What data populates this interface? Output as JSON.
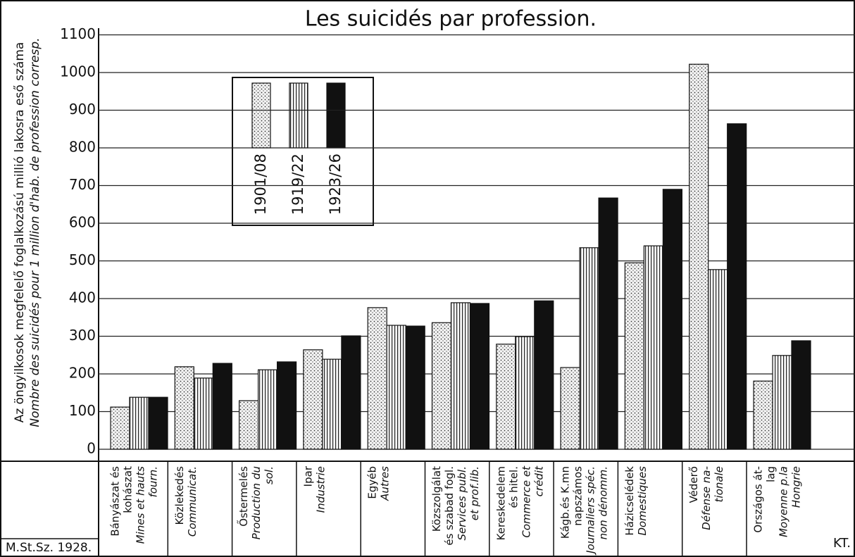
{
  "chart_data": {
    "type": "bar",
    "title": "Les suicidés par profession.",
    "y_label": "Az öngyilkosok megfelelő foglalkozású millió lakosra eső száma",
    "y_label_fr": "Nombre des suicidés pour 1 million d'hab. de profession corresp.",
    "source": "M.St.Sz. 1928.",
    "mark": "KT.",
    "categories": [
      {
        "hu": [
          "Bányászat és",
          "kohászat"
        ],
        "fr": [
          "Mines et hauts",
          "fourn."
        ]
      },
      {
        "hu": [
          "Közlekedés"
        ],
        "fr": [
          "Communicat."
        ]
      },
      {
        "hu": [
          "Őstermelés"
        ],
        "fr": [
          "Production du",
          "sol."
        ]
      },
      {
        "hu": [
          "Ipar"
        ],
        "fr": [
          "Industrie"
        ]
      },
      {
        "hu": [
          "Egyéb"
        ],
        "fr": [
          "Autres"
        ]
      },
      {
        "hu": [
          "Közszolgálat",
          "és szabad fogl."
        ],
        "fr": [
          "Services publ.",
          "et prof.lib."
        ]
      },
      {
        "hu": [
          "Kereskedelem",
          "és hitel."
        ],
        "fr": [
          "Commerce et",
          "crédit"
        ]
      },
      {
        "hu": [
          "Kágb.és K.mn",
          "napszámos"
        ],
        "fr": [
          "Journaliers spéc.",
          "non dénomm."
        ]
      },
      {
        "hu": [
          "Házicselédek"
        ],
        "fr": [
          "Domestiques"
        ]
      },
      {
        "hu": [
          "Véderő"
        ],
        "fr": [
          "Défense na-",
          "tionale"
        ]
      },
      {
        "hu": [
          "Országos át-",
          "lag"
        ],
        "fr": [
          "Moyenne p.la",
          "Hongrie"
        ]
      }
    ],
    "series": [
      {
        "name": "1901/08",
        "pattern": "dots",
        "values": [
          112,
          219,
          129,
          264,
          376,
          336,
          279,
          217,
          495,
          1022,
          181
        ]
      },
      {
        "name": "1919/22",
        "pattern": "stripes",
        "values": [
          138,
          189,
          211,
          239,
          329,
          389,
          299,
          535,
          540,
          477,
          249
        ]
      },
      {
        "name": "1923/26",
        "pattern": "solid",
        "values": [
          138,
          228,
          232,
          301,
          327,
          387,
          394,
          667,
          690,
          864,
          288
        ]
      }
    ],
    "ylim": [
      0,
      1100
    ],
    "yticks": [
      0,
      100,
      200,
      300,
      400,
      500,
      600,
      700,
      800,
      900,
      1000,
      1100
    ],
    "grid": true
  }
}
